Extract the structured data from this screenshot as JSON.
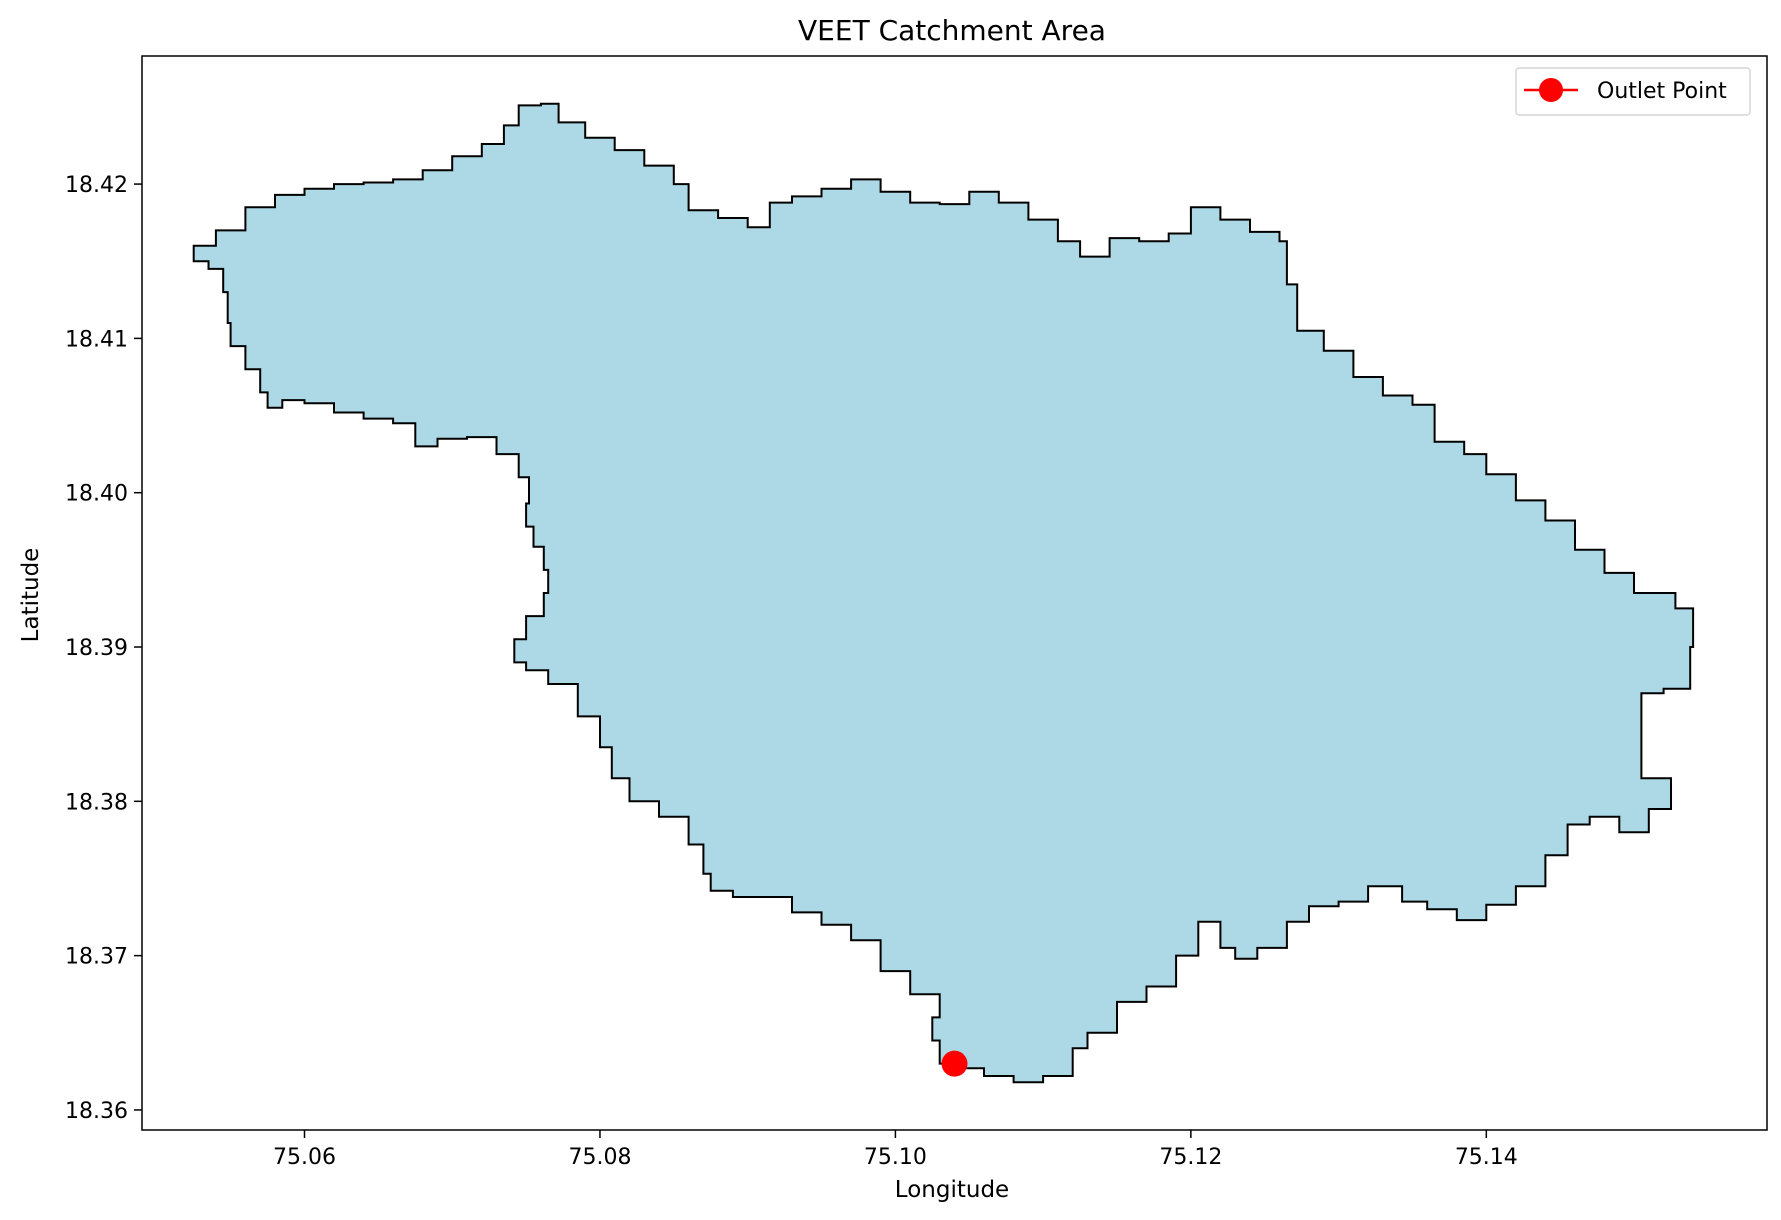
{
  "chart_data": {
    "type": "map",
    "title": "VEET Catchment Area",
    "xlabel": "Longitude",
    "ylabel": "Latitude",
    "xlim": [
      75.049,
      75.159
    ],
    "ylim": [
      18.3587,
      18.4283
    ],
    "xticks": [
      {
        "value": 75.06,
        "label": "75.06"
      },
      {
        "value": 75.08,
        "label": "75.08"
      },
      {
        "value": 75.1,
        "label": "75.10"
      },
      {
        "value": 75.12,
        "label": "75.12"
      },
      {
        "value": 75.14,
        "label": "75.14"
      }
    ],
    "yticks": [
      {
        "value": 18.36,
        "label": "18.36"
      },
      {
        "value": 18.37,
        "label": "18.37"
      },
      {
        "value": 18.38,
        "label": "18.38"
      },
      {
        "value": 18.39,
        "label": "18.39"
      },
      {
        "value": 18.4,
        "label": "18.40"
      },
      {
        "value": 18.41,
        "label": "18.41"
      },
      {
        "value": 18.42,
        "label": "18.42"
      }
    ],
    "grid": false,
    "legend": {
      "placement": "top-right",
      "entries": [
        {
          "label": "Outlet Point",
          "color": "#ff0000",
          "marker": "circle"
        }
      ]
    },
    "catchment": {
      "fill": "#add8e6",
      "stroke": "#000000",
      "boundary": [
        [
          75.054,
          18.417
        ],
        [
          75.056,
          18.4185
        ],
        [
          75.058,
          18.4193
        ],
        [
          75.06,
          18.4197
        ],
        [
          75.062,
          18.42
        ],
        [
          75.064,
          18.4201
        ],
        [
          75.066,
          18.4203
        ],
        [
          75.068,
          18.4209
        ],
        [
          75.07,
          18.4218
        ],
        [
          75.072,
          18.4226
        ],
        [
          75.0735,
          18.4238
        ],
        [
          75.0745,
          18.4251
        ],
        [
          75.076,
          18.4252
        ],
        [
          75.0772,
          18.424
        ],
        [
          75.079,
          18.423
        ],
        [
          75.081,
          18.4222
        ],
        [
          75.083,
          18.4212
        ],
        [
          75.085,
          18.42
        ],
        [
          75.086,
          18.4183
        ],
        [
          75.088,
          18.4178
        ],
        [
          75.09,
          18.4172
        ],
        [
          75.0915,
          18.4188
        ],
        [
          75.093,
          18.4192
        ],
        [
          75.095,
          18.4197
        ],
        [
          75.097,
          18.4203
        ],
        [
          75.099,
          18.4195
        ],
        [
          75.101,
          18.4188
        ],
        [
          75.103,
          18.4187
        ],
        [
          75.105,
          18.4195
        ],
        [
          75.107,
          18.4188
        ],
        [
          75.109,
          18.4177
        ],
        [
          75.111,
          18.4163
        ],
        [
          75.1125,
          18.4153
        ],
        [
          75.1145,
          18.4165
        ],
        [
          75.1165,
          18.4163
        ],
        [
          75.1185,
          18.4168
        ],
        [
          75.12,
          18.4185
        ],
        [
          75.122,
          18.4177
        ],
        [
          75.124,
          18.4169
        ],
        [
          75.126,
          18.4163
        ],
        [
          75.1265,
          18.4135
        ],
        [
          75.1272,
          18.4105
        ],
        [
          75.129,
          18.4092
        ],
        [
          75.131,
          18.4075
        ],
        [
          75.133,
          18.4063
        ],
        [
          75.135,
          18.4057
        ],
        [
          75.1365,
          18.4033
        ],
        [
          75.1385,
          18.4025
        ],
        [
          75.14,
          18.4012
        ],
        [
          75.142,
          18.3995
        ],
        [
          75.144,
          18.3982
        ],
        [
          75.146,
          18.3963
        ],
        [
          75.148,
          18.3948
        ],
        [
          75.15,
          18.3935
        ],
        [
          75.1528,
          18.3925
        ],
        [
          75.154,
          18.39
        ],
        [
          75.1538,
          18.3873
        ],
        [
          75.152,
          18.387
        ],
        [
          75.1505,
          18.3855
        ],
        [
          75.1505,
          18.3835
        ],
        [
          75.1505,
          18.3815
        ],
        [
          75.1525,
          18.3795
        ],
        [
          75.151,
          18.378
        ],
        [
          75.149,
          18.379
        ],
        [
          75.147,
          18.3785
        ],
        [
          75.1455,
          18.3765
        ],
        [
          75.144,
          18.3745
        ],
        [
          75.142,
          18.3733
        ],
        [
          75.14,
          18.3723
        ],
        [
          75.138,
          18.373
        ],
        [
          75.136,
          18.3735
        ],
        [
          75.1343,
          18.3745
        ],
        [
          75.132,
          18.3735
        ],
        [
          75.13,
          18.3732
        ],
        [
          75.128,
          18.3722
        ],
        [
          75.1265,
          18.3705
        ],
        [
          75.1245,
          18.3698
        ],
        [
          75.123,
          18.3705
        ],
        [
          75.122,
          18.3722
        ],
        [
          75.1205,
          18.37
        ],
        [
          75.119,
          18.368
        ],
        [
          75.117,
          18.367
        ],
        [
          75.115,
          18.365
        ],
        [
          75.113,
          18.364
        ],
        [
          75.112,
          18.3622
        ],
        [
          75.11,
          18.3618
        ],
        [
          75.108,
          18.3622
        ],
        [
          75.106,
          18.3627
        ],
        [
          75.104,
          18.363
        ],
        [
          75.103,
          18.3645
        ],
        [
          75.1025,
          18.366
        ],
        [
          75.103,
          18.3675
        ],
        [
          75.101,
          18.369
        ],
        [
          75.099,
          18.371
        ],
        [
          75.097,
          18.372
        ],
        [
          75.095,
          18.3728
        ],
        [
          75.093,
          18.3738
        ],
        [
          75.091,
          18.3738
        ],
        [
          75.089,
          18.3742
        ],
        [
          75.0875,
          18.3753
        ],
        [
          75.087,
          18.3772
        ],
        [
          75.086,
          18.379
        ],
        [
          75.084,
          18.38
        ],
        [
          75.082,
          18.3815
        ],
        [
          75.0808,
          18.3835
        ],
        [
          75.08,
          18.3855
        ],
        [
          75.0785,
          18.3876
        ],
        [
          75.0765,
          18.3885
        ],
        [
          75.075,
          18.389
        ],
        [
          75.0742,
          18.3905
        ],
        [
          75.075,
          18.392
        ],
        [
          75.0762,
          18.3935
        ],
        [
          75.0765,
          18.395
        ],
        [
          75.0762,
          18.3965
        ],
        [
          75.0755,
          18.3978
        ],
        [
          75.075,
          18.3993
        ],
        [
          75.0752,
          18.401
        ],
        [
          75.0745,
          18.4025
        ],
        [
          75.073,
          18.4036
        ],
        [
          75.071,
          18.4035
        ],
        [
          75.069,
          18.403
        ],
        [
          75.0675,
          18.4045
        ],
        [
          75.066,
          18.4048
        ],
        [
          75.064,
          18.4052
        ],
        [
          75.062,
          18.4058
        ],
        [
          75.06,
          18.406
        ],
        [
          75.0585,
          18.4055
        ],
        [
          75.0575,
          18.4065
        ],
        [
          75.057,
          18.408
        ],
        [
          75.056,
          18.4095
        ],
        [
          75.055,
          18.411
        ],
        [
          75.0548,
          18.413
        ],
        [
          75.0545,
          18.4145
        ],
        [
          75.0535,
          18.415
        ],
        [
          75.0525,
          18.416
        ]
      ]
    },
    "outlet_point": {
      "label": "Outlet Point",
      "x": 75.104,
      "y": 18.363,
      "color": "#ff0000"
    }
  }
}
